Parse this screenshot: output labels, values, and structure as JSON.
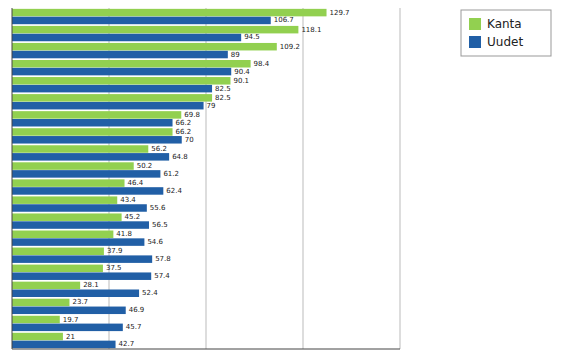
{
  "chart_data": {
    "type": "bar",
    "orientation": "horizontal",
    "categories": [
      null,
      null,
      null,
      null,
      null,
      null,
      null,
      null,
      null,
      null,
      null,
      null,
      null,
      null,
      null,
      null,
      null,
      null,
      null,
      null
    ],
    "series": [
      {
        "name": "Kanta",
        "color": "#92d050",
        "values": [
          129.7,
          118.1,
          109.2,
          98.4,
          90.1,
          82.5,
          69.8,
          66.2,
          56.2,
          50.2,
          46.4,
          43.4,
          45.2,
          41.8,
          37.9,
          37.5,
          28.1,
          23.7,
          19.7,
          21.0
        ]
      },
      {
        "name": "Uudet",
        "color": "#215fa6",
        "values": [
          106.7,
          94.5,
          89.0,
          90.4,
          82.5,
          79.0,
          66.2,
          70.0,
          64.8,
          61.2,
          62.4,
          55.6,
          56.5,
          54.6,
          57.8,
          57.4,
          52.4,
          46.9,
          45.7,
          42.7
        ]
      }
    ],
    "xlim": [
      0,
      160
    ],
    "xticks": [
      40,
      80,
      120,
      160
    ],
    "grid": true,
    "data_labels": true,
    "tick_labels": false,
    "legend": "upper right"
  }
}
